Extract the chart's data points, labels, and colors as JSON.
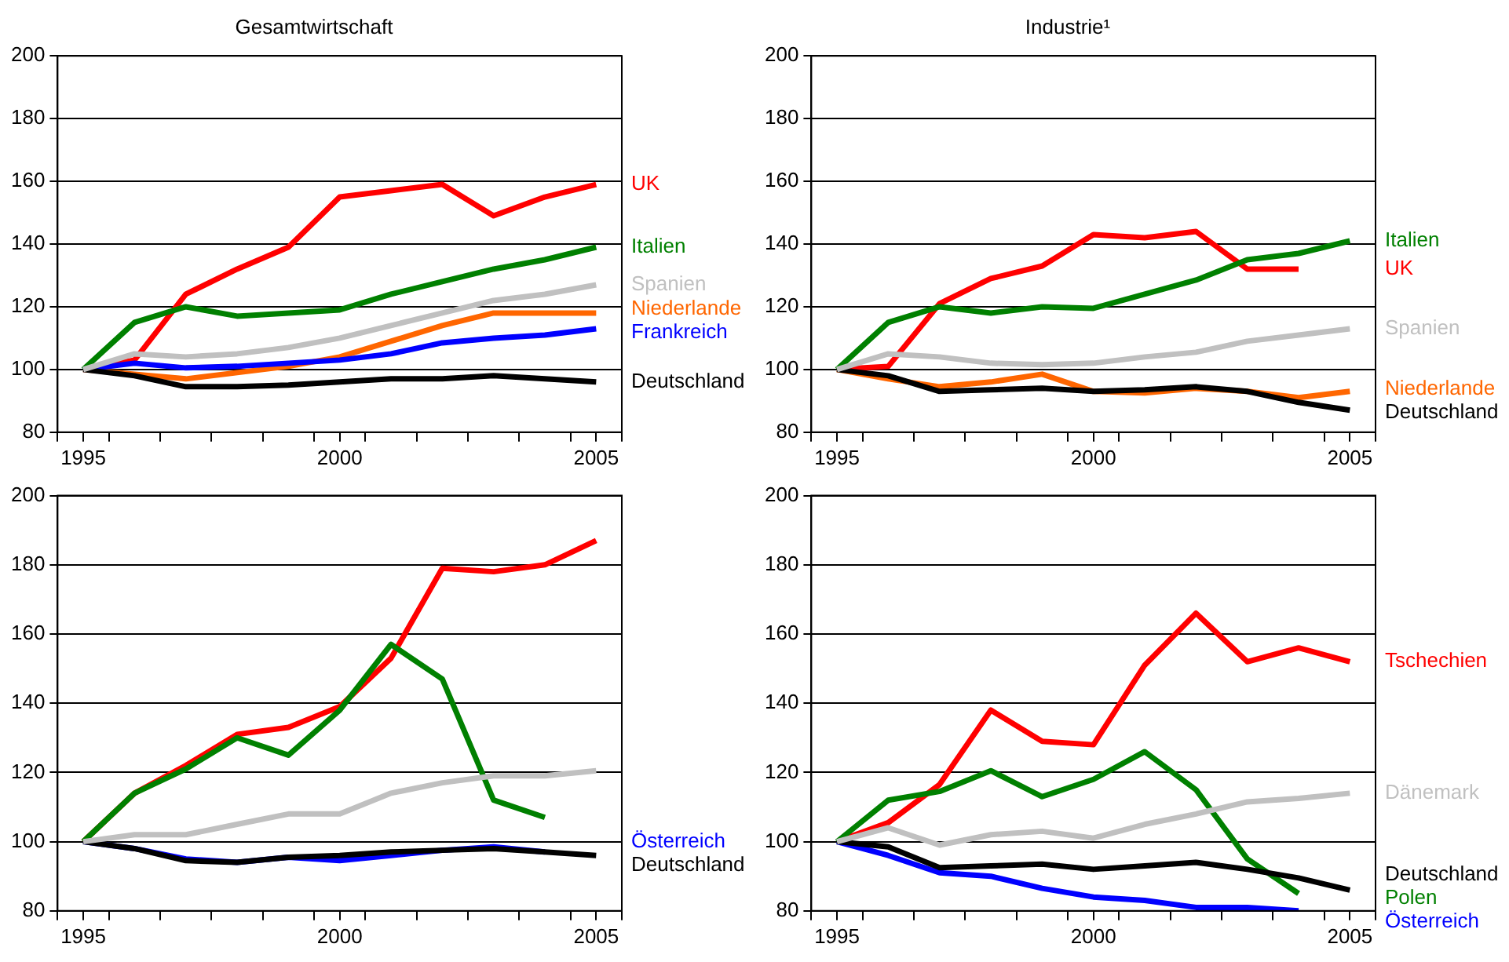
{
  "chart_data": [
    {
      "type": "line",
      "title": "Gesamtwirtschaft",
      "x": [
        1995,
        1996,
        1997,
        1998,
        1999,
        2000,
        2001,
        2002,
        2003,
        2004,
        2005
      ],
      "xlim": [
        1994.5,
        2005.5
      ],
      "xticks": [
        {
          "value": 1994.5,
          "label": null
        },
        1995,
        {
          "value": 1995.5,
          "label": null
        },
        {
          "value": 1996.5,
          "label": null
        },
        {
          "value": 1997.5,
          "label": null
        },
        {
          "value": 1998.5,
          "label": null
        },
        {
          "value": 1999.5,
          "label": null
        },
        2000,
        {
          "value": 2000.5,
          "label": null
        },
        {
          "value": 2001.5,
          "label": null
        },
        {
          "value": 2002.5,
          "label": null
        },
        {
          "value": 2003.5,
          "label": null
        },
        {
          "value": 2004.5,
          "label": null
        },
        2005,
        {
          "value": 2005.5,
          "label": null
        }
      ],
      "ylim": [
        80,
        200
      ],
      "yticks": [
        80,
        100,
        120,
        140,
        160,
        180,
        200
      ],
      "grid": "y",
      "legend": false,
      "series": [
        {
          "name": "Spanien",
          "color": "#c0c0c0",
          "values": [
            100,
            105,
            104,
            105,
            107,
            110,
            114,
            118,
            122,
            124,
            127
          ]
        },
        {
          "name": "Deutschland",
          "color": "#000000",
          "values": [
            100,
            98,
            94.5,
            94.5,
            95,
            96,
            97,
            97,
            98,
            97,
            96
          ]
        },
        {
          "name": "Frankreich",
          "color": "#0000ff",
          "values": [
            100,
            102,
            100.5,
            101,
            102,
            103,
            105,
            108.5,
            110,
            111,
            113
          ]
        },
        {
          "name": "Niederlande",
          "color": "#ff6600",
          "values": [
            100,
            98.5,
            97,
            99,
            101,
            104,
            109,
            114,
            118,
            118,
            118
          ]
        },
        {
          "name": "Italien",
          "color": "#008000",
          "values": [
            100,
            115,
            120,
            117,
            118,
            119,
            124,
            128,
            132,
            135,
            139
          ]
        },
        {
          "name": "UK",
          "color": "#ff0000",
          "values": [
            100,
            103,
            124,
            132,
            139,
            155,
            157,
            159,
            149,
            155,
            159
          ]
        }
      ]
    },
    {
      "type": "line",
      "title": "Industrie¹",
      "x": [
        1995,
        1996,
        1997,
        1998,
        1999,
        2000,
        2001,
        2002,
        2003,
        2004,
        2005
      ],
      "xlim": [
        1994.5,
        2005.5
      ],
      "xticks": [
        {
          "value": 1994.5,
          "label": null
        },
        1995,
        {
          "value": 1995.5,
          "label": null
        },
        {
          "value": 1996.5,
          "label": null
        },
        {
          "value": 1997.5,
          "label": null
        },
        {
          "value": 1998.5,
          "label": null
        },
        {
          "value": 1999.5,
          "label": null
        },
        2000,
        {
          "value": 2000.5,
          "label": null
        },
        {
          "value": 2001.5,
          "label": null
        },
        {
          "value": 2002.5,
          "label": null
        },
        {
          "value": 2003.5,
          "label": null
        },
        {
          "value": 2004.5,
          "label": null
        },
        2005,
        {
          "value": 2005.5,
          "label": null
        }
      ],
      "ylim": [
        80,
        200
      ],
      "yticks": [
        80,
        100,
        120,
        140,
        160,
        180,
        200
      ],
      "grid": "y",
      "legend": false,
      "series": [
        {
          "name": "Spanien",
          "color": "#c0c0c0",
          "values": [
            100,
            105,
            104,
            102,
            101.5,
            102,
            104,
            105.5,
            109,
            111,
            113
          ]
        },
        {
          "name": "Deutschland",
          "color": "#000000",
          "values": [
            100,
            98,
            93,
            93.5,
            94,
            93,
            93.5,
            94.5,
            93,
            89.5,
            87
          ]
        },
        {
          "name": "Niederlande",
          "color": "#ff6600",
          "values": [
            100,
            97,
            94.5,
            96,
            98.5,
            93,
            92.5,
            94,
            93,
            91,
            93
          ]
        },
        {
          "name": "Italien",
          "color": "#008000",
          "values": [
            100,
            115,
            120,
            118,
            120,
            119.5,
            124,
            128.5,
            135,
            137,
            141
          ]
        },
        {
          "name": "UK",
          "color": "#ff0000",
          "values": [
            100,
            101,
            121,
            129,
            133,
            143,
            142,
            144,
            132,
            132,
            null
          ]
        }
      ]
    },
    {
      "type": "line",
      "x": [
        1995,
        1996,
        1997,
        1998,
        1999,
        2000,
        2001,
        2002,
        2003,
        2004,
        2005
      ],
      "xlim": [
        1994.5,
        2005.5
      ],
      "xticks": [
        {
          "value": 1994.5,
          "label": null
        },
        1995,
        {
          "value": 1995.5,
          "label": null
        },
        {
          "value": 1996.5,
          "label": null
        },
        {
          "value": 1997.5,
          "label": null
        },
        {
          "value": 1998.5,
          "label": null
        },
        {
          "value": 1999.5,
          "label": null
        },
        2000,
        {
          "value": 2000.5,
          "label": null
        },
        {
          "value": 2001.5,
          "label": null
        },
        {
          "value": 2002.5,
          "label": null
        },
        {
          "value": 2003.5,
          "label": null
        },
        {
          "value": 2004.5,
          "label": null
        },
        2005,
        {
          "value": 2005.5,
          "label": null
        }
      ],
      "ylim": [
        80,
        200
      ],
      "yticks": [
        80,
        100,
        120,
        140,
        160,
        180,
        200
      ],
      "grid": "y",
      "legend": false,
      "series": [
        {
          "color": "#c0c0c0",
          "values": [
            100,
            102,
            102,
            105,
            108,
            108,
            114,
            117,
            119,
            119,
            120.5
          ]
        },
        {
          "name": "Deutschland",
          "color": "#000000",
          "values": [
            100,
            98,
            94.5,
            94,
            95.5,
            96,
            97,
            97.5,
            98,
            97,
            96
          ]
        },
        {
          "name": "Österreich",
          "color": "#0000ff",
          "values": [
            100,
            98,
            95,
            94,
            95.5,
            94.5,
            96,
            97.5,
            98.5,
            97,
            null
          ]
        },
        {
          "color": "#008000",
          "values": [
            100,
            114,
            121,
            130,
            125,
            138,
            157,
            147,
            112,
            107,
            null
          ]
        },
        {
          "color": "#ff0000",
          "values": [
            100,
            114,
            122,
            131,
            133,
            139,
            153,
            179,
            178,
            180,
            187
          ]
        }
      ]
    },
    {
      "type": "line",
      "x": [
        1995,
        1996,
        1997,
        1998,
        1999,
        2000,
        2001,
        2002,
        2003,
        2004,
        2005
      ],
      "xlim": [
        1994.5,
        2005.5
      ],
      "xticks": [
        {
          "value": 1994.5,
          "label": null
        },
        1995,
        {
          "value": 1995.5,
          "label": null
        },
        {
          "value": 1996.5,
          "label": null
        },
        {
          "value": 1997.5,
          "label": null
        },
        {
          "value": 1998.5,
          "label": null
        },
        {
          "value": 1999.5,
          "label": null
        },
        2000,
        {
          "value": 2000.5,
          "label": null
        },
        {
          "value": 2001.5,
          "label": null
        },
        {
          "value": 2002.5,
          "label": null
        },
        {
          "value": 2003.5,
          "label": null
        },
        {
          "value": 2004.5,
          "label": null
        },
        2005,
        {
          "value": 2005.5,
          "label": null
        }
      ],
      "ylim": [
        80,
        200
      ],
      "yticks": [
        80,
        100,
        120,
        140,
        160,
        180,
        200
      ],
      "grid": "y",
      "legend": false,
      "series": [
        {
          "name": "Dänemark",
          "color": "#c0c0c0",
          "values": [
            100,
            104,
            99,
            102,
            103,
            101,
            105,
            108,
            111.5,
            112.5,
            114
          ]
        },
        {
          "name": "Deutschland",
          "color": "#000000",
          "values": [
            100,
            98.5,
            92.5,
            93,
            93.5,
            92,
            93,
            94,
            92,
            89.5,
            86
          ]
        },
        {
          "name": "Österreich",
          "color": "#0000ff",
          "values": [
            100,
            96,
            91,
            90,
            86.5,
            84,
            83,
            81,
            81,
            80,
            null
          ]
        },
        {
          "name": "Polen",
          "color": "#008000",
          "values": [
            100,
            112,
            114.5,
            120.5,
            113,
            118,
            126,
            115,
            95,
            85,
            null
          ]
        },
        {
          "name": "Tschechien",
          "color": "#ff0000",
          "values": [
            100,
            105.5,
            116.5,
            138,
            129,
            128,
            151,
            166,
            152,
            156,
            152
          ]
        }
      ]
    }
  ]
}
